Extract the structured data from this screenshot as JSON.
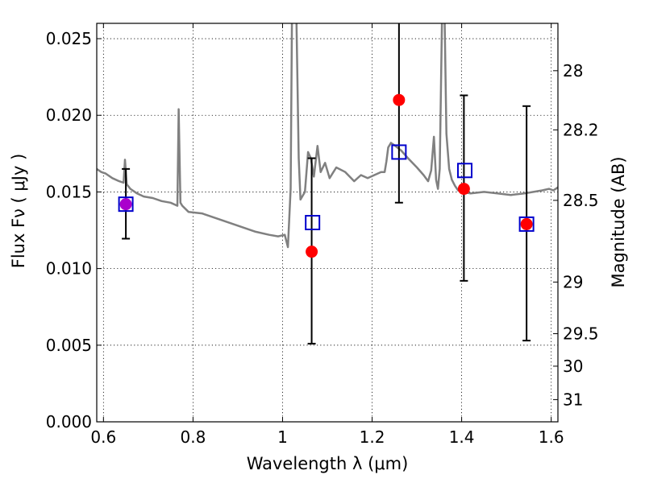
{
  "chart_data": {
    "type": "scatter",
    "xlabel": "Wavelength  λ (μm)",
    "ylabel": "Flux  Fν  ( μJy )",
    "y2label": "Magnitude (AB)",
    "xlim": [
      0.585,
      1.615
    ],
    "ylim": [
      0.0,
      0.026
    ],
    "grid": true,
    "x_ticks": [
      0.6,
      0.8,
      1.0,
      1.2,
      1.4,
      1.6
    ],
    "x_tick_labels": [
      "0.6",
      "0.8",
      "1",
      "1.2",
      "1.4",
      "1.6"
    ],
    "y_ticks": [
      0.0,
      0.005,
      0.01,
      0.015,
      0.02,
      0.025
    ],
    "y_tick_labels": [
      "0.000",
      "0.005",
      "0.010",
      "0.015",
      "0.020",
      "0.025"
    ],
    "y2_ticks": [
      {
        "label": "28",
        "flux": 0.02291
      },
      {
        "label": "28.2",
        "flux": 0.01905
      },
      {
        "label": "28.5",
        "flux": 0.01445
      },
      {
        "label": "29",
        "flux": 0.00912
      },
      {
        "label": "29.5",
        "flux": 0.00575
      },
      {
        "label": "30",
        "flux": 0.00363
      },
      {
        "label": "31",
        "flux": 0.00145
      }
    ],
    "colors": {
      "model": "#808080",
      "observed": "#ff0000",
      "model_photometry": "#0000cc",
      "errorbar": "#000000",
      "overlap": "#aa00cc"
    },
    "series": [
      {
        "type": "line",
        "style": "model-spectrum",
        "x": [
          0.585,
          0.595,
          0.605,
          0.62,
          0.635,
          0.645,
          0.648,
          0.652,
          0.66,
          0.675,
          0.69,
          0.71,
          0.73,
          0.75,
          0.765,
          0.768,
          0.772,
          0.776,
          0.79,
          0.82,
          0.86,
          0.9,
          0.94,
          0.97,
          0.99,
          1.005,
          1.012,
          1.018,
          1.021,
          1.024,
          1.027,
          1.031,
          1.036,
          1.04,
          1.05,
          1.057,
          1.063,
          1.07,
          1.078,
          1.085,
          1.095,
          1.105,
          1.12,
          1.14,
          1.16,
          1.175,
          1.19,
          1.205,
          1.22,
          1.228,
          1.232,
          1.236,
          1.242,
          1.252,
          1.265,
          1.28,
          1.3,
          1.315,
          1.325,
          1.332,
          1.338,
          1.343,
          1.347,
          1.351,
          1.356,
          1.362,
          1.366,
          1.372,
          1.378,
          1.385,
          1.392,
          1.4,
          1.42,
          1.45,
          1.48,
          1.51,
          1.54,
          1.56,
          1.58,
          1.595,
          1.605,
          1.615
        ],
        "y": [
          0.0165,
          0.0163,
          0.0162,
          0.0159,
          0.0157,
          0.0156,
          0.0171,
          0.0155,
          0.0152,
          0.0149,
          0.0147,
          0.0146,
          0.0144,
          0.0143,
          0.0141,
          0.0204,
          0.0143,
          0.0141,
          0.0137,
          0.0136,
          0.0132,
          0.0128,
          0.0124,
          0.0122,
          0.0121,
          0.0122,
          0.0114,
          0.0152,
          0.0262,
          0.0262,
          0.0262,
          0.0262,
          0.0172,
          0.0145,
          0.015,
          0.0176,
          0.0172,
          0.016,
          0.018,
          0.0163,
          0.0169,
          0.0159,
          0.0166,
          0.0163,
          0.0157,
          0.0161,
          0.0159,
          0.0161,
          0.0163,
          0.0163,
          0.017,
          0.0179,
          0.0182,
          0.018,
          0.0177,
          0.0172,
          0.0166,
          0.0161,
          0.0157,
          0.0164,
          0.0186,
          0.0158,
          0.0152,
          0.0165,
          0.0262,
          0.0262,
          0.0188,
          0.0165,
          0.0158,
          0.0154,
          0.0151,
          0.015,
          0.0149,
          0.015,
          0.0149,
          0.0148,
          0.0149,
          0.015,
          0.0151,
          0.0152,
          0.0151,
          0.0153
        ]
      },
      {
        "type": "errorbar",
        "style": "observed-points",
        "x": [
          0.65,
          1.065,
          1.26,
          1.405,
          1.545
        ],
        "y": [
          0.0142,
          0.0111,
          0.021,
          0.0152,
          0.0129
        ],
        "yerr_low": [
          0.01195,
          0.0051,
          0.0143,
          0.0092,
          0.0053
        ],
        "yerr_high": [
          0.0165,
          0.0172,
          0.0262,
          0.0213,
          0.0206
        ]
      },
      {
        "type": "scatter",
        "style": "model-photometry-squares",
        "x": [
          0.65,
          1.067,
          1.26,
          1.407,
          1.545
        ],
        "y": [
          0.0142,
          0.013,
          0.0176,
          0.0164,
          0.0129
        ]
      }
    ]
  }
}
